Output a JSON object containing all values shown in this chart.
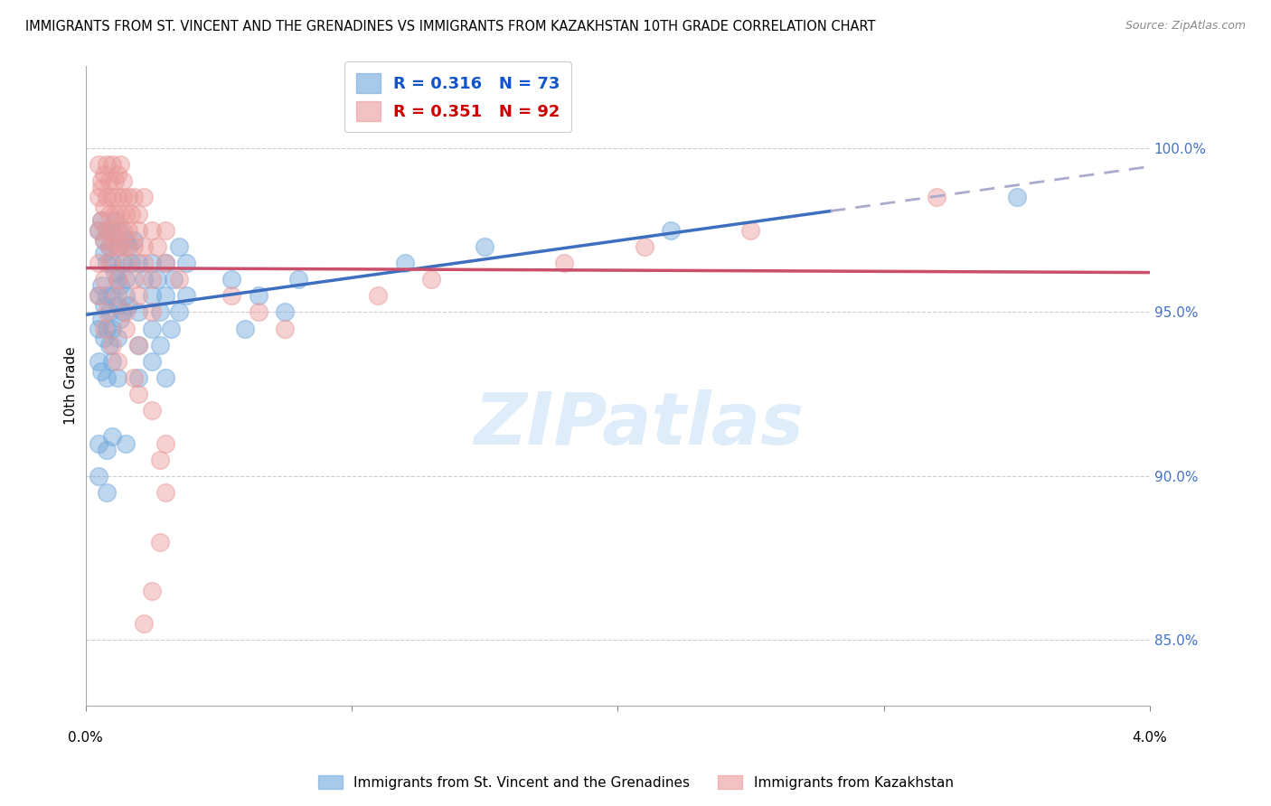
{
  "title": "IMMIGRANTS FROM ST. VINCENT AND THE GRENADINES VS IMMIGRANTS FROM KAZAKHSTAN 10TH GRADE CORRELATION CHART",
  "source": "Source: ZipAtlas.com",
  "ylabel": "10th Grade",
  "y_ticks": [
    85.0,
    90.0,
    95.0,
    100.0
  ],
  "y_tick_labels": [
    "85.0%",
    "90.0%",
    "95.0%",
    "100.0%"
  ],
  "xlim": [
    0.0,
    4.0
  ],
  "ylim": [
    83.0,
    102.5
  ],
  "label_blue": "Immigrants from St. Vincent and the Grenadines",
  "label_pink": "Immigrants from Kazakhstan",
  "blue_color": "#6fa8dc",
  "pink_color": "#ea9999",
  "blue_line_color": "#3d6ebf",
  "pink_line_color": "#c94f6a",
  "dash_color": "#aaaacc",
  "blue_scatter": [
    [
      0.05,
      97.5
    ],
    [
      0.06,
      97.8
    ],
    [
      0.07,
      97.2
    ],
    [
      0.07,
      96.8
    ],
    [
      0.08,
      97.5
    ],
    [
      0.08,
      96.5
    ],
    [
      0.09,
      97.0
    ],
    [
      0.1,
      97.5
    ],
    [
      0.1,
      96.5
    ],
    [
      0.11,
      97.8
    ],
    [
      0.11,
      96.2
    ],
    [
      0.12,
      97.0
    ],
    [
      0.12,
      96.0
    ],
    [
      0.13,
      97.5
    ],
    [
      0.14,
      96.5
    ],
    [
      0.15,
      97.2
    ],
    [
      0.15,
      96.0
    ],
    [
      0.16,
      97.0
    ],
    [
      0.17,
      96.5
    ],
    [
      0.18,
      97.2
    ],
    [
      0.05,
      95.5
    ],
    [
      0.06,
      95.8
    ],
    [
      0.07,
      95.2
    ],
    [
      0.08,
      95.5
    ],
    [
      0.09,
      95.0
    ],
    [
      0.1,
      95.5
    ],
    [
      0.12,
      95.2
    ],
    [
      0.13,
      95.8
    ],
    [
      0.14,
      95.0
    ],
    [
      0.15,
      95.5
    ],
    [
      0.16,
      95.2
    ],
    [
      0.05,
      94.5
    ],
    [
      0.06,
      94.8
    ],
    [
      0.07,
      94.2
    ],
    [
      0.08,
      94.5
    ],
    [
      0.09,
      94.0
    ],
    [
      0.1,
      94.5
    ],
    [
      0.12,
      94.2
    ],
    [
      0.13,
      94.8
    ],
    [
      0.05,
      93.5
    ],
    [
      0.06,
      93.2
    ],
    [
      0.08,
      93.0
    ],
    [
      0.1,
      93.5
    ],
    [
      0.12,
      93.0
    ],
    [
      0.2,
      96.5
    ],
    [
      0.22,
      96.0
    ],
    [
      0.25,
      96.5
    ],
    [
      0.27,
      96.0
    ],
    [
      0.3,
      96.5
    ],
    [
      0.33,
      96.0
    ],
    [
      0.35,
      97.0
    ],
    [
      0.38,
      96.5
    ],
    [
      0.2,
      95.0
    ],
    [
      0.25,
      95.5
    ],
    [
      0.28,
      95.0
    ],
    [
      0.3,
      95.5
    ],
    [
      0.35,
      95.0
    ],
    [
      0.38,
      95.5
    ],
    [
      0.2,
      94.0
    ],
    [
      0.25,
      94.5
    ],
    [
      0.28,
      94.0
    ],
    [
      0.32,
      94.5
    ],
    [
      0.2,
      93.0
    ],
    [
      0.25,
      93.5
    ],
    [
      0.3,
      93.0
    ],
    [
      0.05,
      91.0
    ],
    [
      0.08,
      90.8
    ],
    [
      0.1,
      91.2
    ],
    [
      0.15,
      91.0
    ],
    [
      0.05,
      90.0
    ],
    [
      0.08,
      89.5
    ],
    [
      0.55,
      96.0
    ],
    [
      0.65,
      95.5
    ],
    [
      0.8,
      96.0
    ],
    [
      0.6,
      94.5
    ],
    [
      0.75,
      95.0
    ],
    [
      1.2,
      96.5
    ],
    [
      1.5,
      97.0
    ],
    [
      2.2,
      97.5
    ],
    [
      3.5,
      98.5
    ]
  ],
  "pink_scatter": [
    [
      0.05,
      99.5
    ],
    [
      0.06,
      99.0
    ],
    [
      0.07,
      99.2
    ],
    [
      0.08,
      99.5
    ],
    [
      0.09,
      99.0
    ],
    [
      0.1,
      99.5
    ],
    [
      0.11,
      99.0
    ],
    [
      0.12,
      99.2
    ],
    [
      0.13,
      99.5
    ],
    [
      0.14,
      99.0
    ],
    [
      0.05,
      98.5
    ],
    [
      0.06,
      98.8
    ],
    [
      0.07,
      98.2
    ],
    [
      0.08,
      98.5
    ],
    [
      0.09,
      98.0
    ],
    [
      0.1,
      98.5
    ],
    [
      0.11,
      98.0
    ],
    [
      0.12,
      98.5
    ],
    [
      0.13,
      98.0
    ],
    [
      0.14,
      98.5
    ],
    [
      0.15,
      98.0
    ],
    [
      0.16,
      98.5
    ],
    [
      0.17,
      98.0
    ],
    [
      0.18,
      98.5
    ],
    [
      0.2,
      98.0
    ],
    [
      0.22,
      98.5
    ],
    [
      0.05,
      97.5
    ],
    [
      0.06,
      97.8
    ],
    [
      0.07,
      97.2
    ],
    [
      0.08,
      97.5
    ],
    [
      0.09,
      97.0
    ],
    [
      0.1,
      97.5
    ],
    [
      0.11,
      97.0
    ],
    [
      0.12,
      97.5
    ],
    [
      0.13,
      97.0
    ],
    [
      0.14,
      97.5
    ],
    [
      0.15,
      97.0
    ],
    [
      0.16,
      97.5
    ],
    [
      0.18,
      97.0
    ],
    [
      0.2,
      97.5
    ],
    [
      0.22,
      97.0
    ],
    [
      0.25,
      97.5
    ],
    [
      0.27,
      97.0
    ],
    [
      0.3,
      97.5
    ],
    [
      0.05,
      96.5
    ],
    [
      0.07,
      96.0
    ],
    [
      0.09,
      96.5
    ],
    [
      0.12,
      96.0
    ],
    [
      0.15,
      96.5
    ],
    [
      0.18,
      96.0
    ],
    [
      0.22,
      96.5
    ],
    [
      0.25,
      96.0
    ],
    [
      0.3,
      96.5
    ],
    [
      0.35,
      96.0
    ],
    [
      0.05,
      95.5
    ],
    [
      0.08,
      95.0
    ],
    [
      0.12,
      95.5
    ],
    [
      0.15,
      95.0
    ],
    [
      0.2,
      95.5
    ],
    [
      0.25,
      95.0
    ],
    [
      0.07,
      94.5
    ],
    [
      0.1,
      94.0
    ],
    [
      0.15,
      94.5
    ],
    [
      0.2,
      94.0
    ],
    [
      0.12,
      93.5
    ],
    [
      0.18,
      93.0
    ],
    [
      0.2,
      92.5
    ],
    [
      0.25,
      92.0
    ],
    [
      0.3,
      91.0
    ],
    [
      0.28,
      90.5
    ],
    [
      0.3,
      89.5
    ],
    [
      0.28,
      88.0
    ],
    [
      0.25,
      86.5
    ],
    [
      0.22,
      85.5
    ],
    [
      0.55,
      95.5
    ],
    [
      0.65,
      95.0
    ],
    [
      0.75,
      94.5
    ],
    [
      1.1,
      95.5
    ],
    [
      1.3,
      96.0
    ],
    [
      1.8,
      96.5
    ],
    [
      2.1,
      97.0
    ],
    [
      2.5,
      97.5
    ],
    [
      3.2,
      98.5
    ]
  ],
  "background_color": "#ffffff",
  "grid_color": "#cccccc"
}
